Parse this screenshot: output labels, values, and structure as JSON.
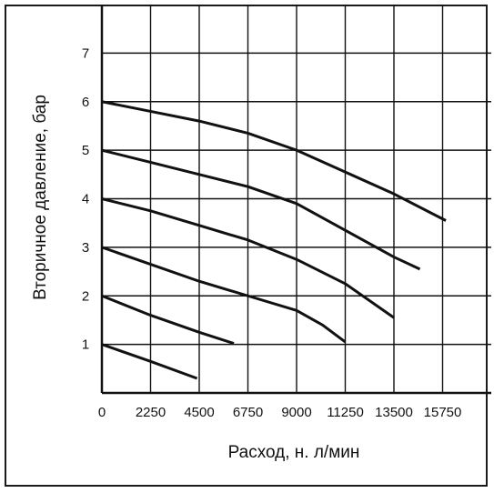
{
  "colors": {
    "line": "#111111",
    "grid": "#111111",
    "background": "#ffffff"
  },
  "chart_data": {
    "type": "line",
    "title": "",
    "xlabel": "Расход, н. л/мин",
    "ylabel": "Вторичное давление, бар",
    "xlim": [
      0,
      18000
    ],
    "ylim": [
      0,
      8
    ],
    "grid": true,
    "legend": "none",
    "x_ticks": [
      0,
      2250,
      4500,
      6750,
      9000,
      11250,
      13500,
      15750
    ],
    "x_tick_labels": [
      "0",
      "2250",
      "4500",
      "6750",
      "9000",
      "11250",
      "13500",
      "15750"
    ],
    "y_ticks": [
      1,
      2,
      3,
      4,
      5,
      6,
      7
    ],
    "y_tick_labels": [
      "1",
      "2",
      "3",
      "4",
      "5",
      "6",
      "7"
    ],
    "series": [
      {
        "x": [
          0,
          2250,
          4400
        ],
        "y": [
          1.0,
          0.65,
          0.3
        ]
      },
      {
        "x": [
          0,
          2250,
          4500,
          6100
        ],
        "y": [
          2.0,
          1.6,
          1.25,
          1.02
        ]
      },
      {
        "x": [
          0,
          2250,
          4500,
          6750,
          9000,
          10200,
          11250
        ],
        "y": [
          3.0,
          2.65,
          2.3,
          2.0,
          1.7,
          1.4,
          1.05
        ]
      },
      {
        "x": [
          0,
          2250,
          4500,
          6750,
          9000,
          11250,
          13500
        ],
        "y": [
          4.0,
          3.75,
          3.45,
          3.15,
          2.75,
          2.25,
          1.55
        ]
      },
      {
        "x": [
          0,
          2250,
          4500,
          6750,
          9000,
          11250,
          13500,
          14700
        ],
        "y": [
          5.0,
          4.75,
          4.5,
          4.25,
          3.9,
          3.35,
          2.8,
          2.55
        ]
      },
      {
        "x": [
          0,
          2250,
          4500,
          6750,
          9000,
          11250,
          13500,
          15900
        ],
        "y": [
          6.0,
          5.8,
          5.6,
          5.35,
          5.0,
          4.55,
          4.1,
          3.55
        ]
      }
    ]
  }
}
